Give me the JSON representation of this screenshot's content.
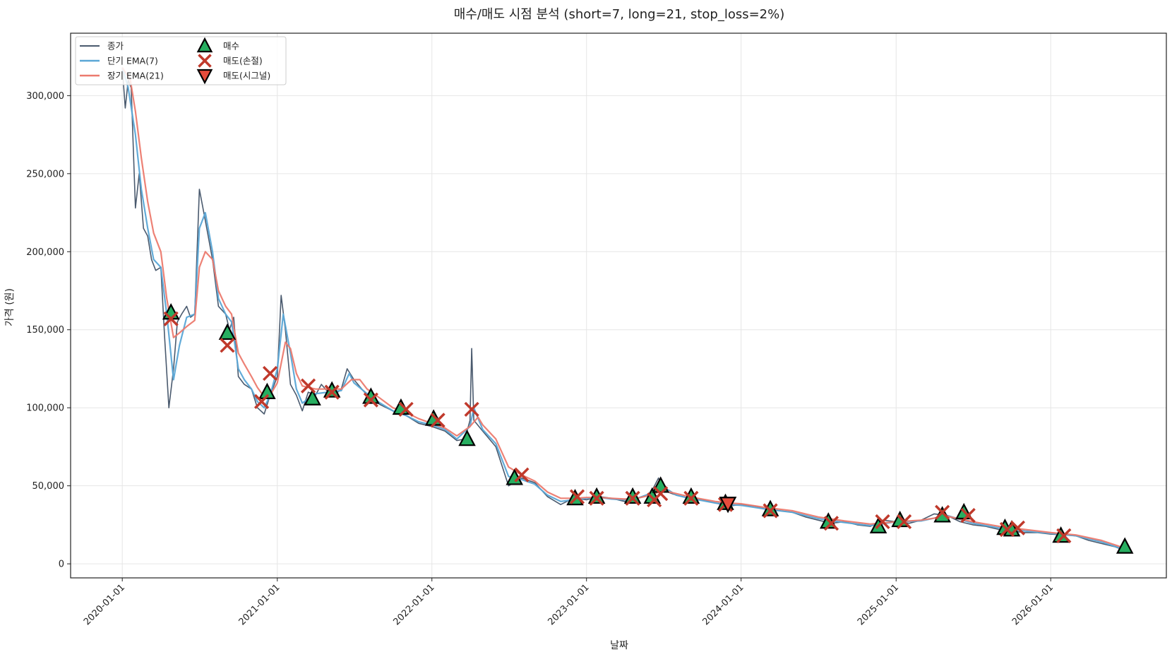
{
  "chart_data": {
    "type": "line",
    "title": "매수/매도 시점 분석 (short=7, long=21, stop_loss=2%)",
    "xlabel": "날짜",
    "ylabel": "가격 (원)",
    "xlim": [
      "2019-09-01",
      "2026-10-01"
    ],
    "ylim": [
      -9000,
      340000
    ],
    "grid": true,
    "legend_position": "top-left",
    "x_ticks": [
      "2020-01-01",
      "2021-01-01",
      "2022-01-01",
      "2023-01-01",
      "2024-01-01",
      "2025-01-01",
      "2026-01-01"
    ],
    "y_ticks": [
      0,
      50000,
      100000,
      150000,
      200000,
      250000,
      300000
    ],
    "y_tick_labels": [
      "0",
      "50,000",
      "100,000",
      "150,000",
      "200,000",
      "250,000",
      "300,000"
    ],
    "colors": {
      "close": "#4a5a6e",
      "ema_short": "#5aa7d6",
      "ema_long": "#ec7a6e",
      "buy": "#27ae60",
      "sell_stop": "#c0392b",
      "sell_signal": "#e74c3c",
      "grid": "#e6e6e6"
    },
    "series": [
      {
        "name": "종가",
        "x": [
          "2020-01-01",
          "2020-01-08",
          "2020-01-15",
          "2020-01-22",
          "2020-02-01",
          "2020-02-10",
          "2020-02-20",
          "2020-03-01",
          "2020-03-10",
          "2020-03-20",
          "2020-04-01",
          "2020-04-10",
          "2020-04-20",
          "2020-05-01",
          "2020-05-10",
          "2020-05-20",
          "2020-06-01",
          "2020-06-10",
          "2020-06-20",
          "2020-07-01",
          "2020-07-15",
          "2020-08-01",
          "2020-08-15",
          "2020-09-01",
          "2020-09-10",
          "2020-09-20",
          "2020-10-01",
          "2020-10-15",
          "2020-11-01",
          "2020-11-15",
          "2020-12-01",
          "2020-12-15",
          "2021-01-01",
          "2021-01-10",
          "2021-01-20",
          "2021-02-01",
          "2021-02-15",
          "2021-03-01",
          "2021-03-15",
          "2021-04-01",
          "2021-04-15",
          "2021-05-01",
          "2021-05-15",
          "2021-06-01",
          "2021-06-15",
          "2021-07-01",
          "2021-08-01",
          "2021-09-01",
          "2021-10-01",
          "2021-11-01",
          "2021-12-01",
          "2022-01-01",
          "2022-02-01",
          "2022-03-01",
          "2022-03-20",
          "2022-04-01",
          "2022-04-05",
          "2022-04-10",
          "2022-05-01",
          "2022-06-01",
          "2022-07-01",
          "2022-08-01",
          "2022-09-01",
          "2022-10-01",
          "2022-11-01",
          "2022-12-01",
          "2023-01-01",
          "2023-02-01",
          "2023-03-01",
          "2023-04-01",
          "2023-05-01",
          "2023-06-01",
          "2023-06-20",
          "2023-07-01",
          "2023-08-01",
          "2023-09-01",
          "2023-10-01",
          "2023-11-01",
          "2023-12-01",
          "2024-01-01",
          "2024-02-01",
          "2024-03-01",
          "2024-04-01",
          "2024-05-01",
          "2024-06-01",
          "2024-07-01",
          "2024-08-01",
          "2024-09-01",
          "2024-10-01",
          "2024-11-01",
          "2024-12-01",
          "2025-01-01",
          "2025-02-01",
          "2025-03-01",
          "2025-04-01",
          "2025-05-01",
          "2025-06-01",
          "2025-07-01",
          "2025-08-01",
          "2025-09-01",
          "2025-10-01",
          "2025-11-01",
          "2025-12-01",
          "2026-01-01",
          "2026-02-01",
          "2026-03-01",
          "2026-04-01",
          "2026-05-01",
          "2026-06-01",
          "2026-06-20"
        ],
        "values": [
          318000,
          292000,
          310000,
          305000,
          228000,
          250000,
          215000,
          210000,
          195000,
          188000,
          190000,
          145000,
          100000,
          125000,
          155000,
          160000,
          165000,
          158000,
          160000,
          240000,
          220000,
          195000,
          165000,
          160000,
          150000,
          158000,
          120000,
          115000,
          112000,
          100000,
          96000,
          108000,
          120000,
          172000,
          150000,
          115000,
          108000,
          98000,
          110000,
          108000,
          115000,
          110000,
          108000,
          112000,
          125000,
          118000,
          108000,
          102000,
          98000,
          95000,
          90000,
          88000,
          85000,
          79000,
          80000,
          92000,
          138000,
          92000,
          85000,
          75000,
          50000,
          55000,
          52000,
          43000,
          38000,
          42000,
          41000,
          43000,
          42000,
          40000,
          42000,
          45000,
          55000,
          47000,
          44000,
          42000,
          41000,
          39000,
          37000,
          38000,
          37000,
          35000,
          34000,
          33000,
          30000,
          28000,
          26000,
          27000,
          25000,
          24000,
          28000,
          27000,
          26000,
          28000,
          32000,
          31000,
          27000,
          25000,
          24000,
          22000,
          21000,
          20000,
          20000,
          19000,
          18500,
          18000,
          15000,
          13000,
          11000,
          9000
        ]
      },
      {
        "name": "단기 EMA(7)",
        "x": [
          "2020-01-01",
          "2020-01-15",
          "2020-02-01",
          "2020-02-15",
          "2020-03-01",
          "2020-03-15",
          "2020-04-01",
          "2020-04-15",
          "2020-05-01",
          "2020-05-15",
          "2020-06-01",
          "2020-06-20",
          "2020-07-01",
          "2020-07-15",
          "2020-08-01",
          "2020-08-15",
          "2020-09-01",
          "2020-09-15",
          "2020-10-01",
          "2020-10-15",
          "2020-11-01",
          "2020-11-15",
          "2020-12-01",
          "2020-12-15",
          "2021-01-01",
          "2021-01-15",
          "2021-02-01",
          "2021-02-15",
          "2021-03-01",
          "2021-04-01",
          "2021-05-01",
          "2021-06-01",
          "2021-06-20",
          "2021-07-01",
          "2021-08-01",
          "2021-09-01",
          "2021-10-01",
          "2021-11-01",
          "2021-12-01",
          "2022-01-01",
          "2022-02-01",
          "2022-03-01",
          "2022-04-01",
          "2022-04-10",
          "2022-05-01",
          "2022-06-01",
          "2022-07-01",
          "2022-08-01",
          "2022-09-01",
          "2022-10-01",
          "2022-11-01",
          "2022-12-01",
          "2023-01-01",
          "2023-02-01",
          "2023-03-01",
          "2023-04-01",
          "2023-05-01",
          "2023-06-01",
          "2023-06-25",
          "2023-07-15",
          "2023-08-01",
          "2023-09-01",
          "2023-10-01",
          "2023-11-01",
          "2023-12-01",
          "2024-01-01",
          "2024-03-01",
          "2024-05-01",
          "2024-07-01",
          "2024-09-01",
          "2024-11-01",
          "2025-01-01",
          "2025-03-01",
          "2025-05-01",
          "2025-07-01",
          "2025-09-01",
          "2025-11-01",
          "2026-01-01",
          "2026-03-01",
          "2026-05-01",
          "2026-06-20"
        ],
        "values": [
          318000,
          305000,
          275000,
          240000,
          215000,
          195000,
          190000,
          160000,
          118000,
          140000,
          158000,
          160000,
          215000,
          225000,
          200000,
          170000,
          160000,
          155000,
          125000,
          118000,
          112000,
          104000,
          100000,
          108000,
          125000,
          160000,
          135000,
          112000,
          103000,
          109000,
          110000,
          111000,
          122000,
          116000,
          109000,
          103000,
          98000,
          95000,
          91000,
          89000,
          86000,
          80000,
          88000,
          100000,
          86000,
          77000,
          56000,
          54000,
          51000,
          44000,
          40000,
          41000,
          42000,
          42500,
          41500,
          41000,
          42000,
          45000,
          50000,
          47000,
          44000,
          42000,
          40500,
          39000,
          38000,
          37500,
          35000,
          33000,
          29000,
          26500,
          24500,
          27000,
          27500,
          31000,
          26000,
          23000,
          21000,
          19500,
          18000,
          14000,
          9500
        ]
      },
      {
        "name": "장기 EMA(21)",
        "x": [
          "2020-01-01",
          "2020-01-20",
          "2020-02-01",
          "2020-02-15",
          "2020-03-01",
          "2020-03-15",
          "2020-04-01",
          "2020-04-15",
          "2020-05-01",
          "2020-05-15",
          "2020-06-01",
          "2020-06-20",
          "2020-07-01",
          "2020-07-15",
          "2020-08-01",
          "2020-08-15",
          "2020-09-01",
          "2020-09-15",
          "2020-10-01",
          "2020-10-15",
          "2020-11-01",
          "2020-11-15",
          "2020-12-01",
          "2020-12-15",
          "2021-01-01",
          "2021-01-20",
          "2021-02-01",
          "2021-02-15",
          "2021-03-01",
          "2021-04-01",
          "2021-05-01",
          "2021-06-01",
          "2021-06-25",
          "2021-07-15",
          "2021-08-01",
          "2021-09-01",
          "2021-10-01",
          "2021-11-01",
          "2021-12-01",
          "2022-01-01",
          "2022-02-01",
          "2022-03-01",
          "2022-04-01",
          "2022-04-20",
          "2022-05-01",
          "2022-06-01",
          "2022-07-01",
          "2022-08-01",
          "2022-09-01",
          "2022-10-01",
          "2022-11-01",
          "2022-12-01",
          "2023-01-01",
          "2023-02-01",
          "2023-03-01",
          "2023-04-01",
          "2023-05-01",
          "2023-06-01",
          "2023-07-01",
          "2023-08-01",
          "2023-09-01",
          "2023-10-01",
          "2023-11-01",
          "2023-12-01",
          "2024-01-01",
          "2024-03-01",
          "2024-05-01",
          "2024-07-01",
          "2024-09-01",
          "2024-11-01",
          "2025-01-01",
          "2025-03-01",
          "2025-05-01",
          "2025-07-01",
          "2025-09-01",
          "2025-11-01",
          "2026-01-01",
          "2026-03-01",
          "2026-05-01",
          "2026-06-20"
        ],
        "values": [
          318000,
          310000,
          290000,
          260000,
          232000,
          212000,
          200000,
          170000,
          145000,
          148000,
          152000,
          156000,
          190000,
          200000,
          195000,
          175000,
          165000,
          160000,
          135000,
          128000,
          120000,
          113000,
          107000,
          108000,
          116000,
          142000,
          138000,
          122000,
          114000,
          112000,
          112000,
          112000,
          118000,
          118000,
          112000,
          106000,
          100000,
          97000,
          93000,
          90000,
          87000,
          82000,
          88000,
          94000,
          89000,
          80000,
          62000,
          57000,
          53000,
          46000,
          42000,
          42000,
          42500,
          42500,
          42000,
          41500,
          42000,
          44000,
          47000,
          45000,
          43000,
          41500,
          40000,
          39000,
          38500,
          36000,
          34000,
          30000,
          27500,
          25500,
          27000,
          28000,
          30500,
          27000,
          24000,
          22000,
          20000,
          18500,
          15000,
          10500
        ]
      }
    ],
    "markers": [
      {
        "name": "매수",
        "shape": "triangle-up",
        "x": [
          "2020-04-25",
          "2020-09-05",
          "2020-12-08",
          "2021-03-25",
          "2021-05-10",
          "2021-08-10",
          "2021-10-20",
          "2022-01-05",
          "2022-03-25",
          "2022-07-15",
          "2022-12-05",
          "2023-01-25",
          "2023-04-20",
          "2023-06-05",
          "2023-06-25",
          "2023-09-05",
          "2023-11-25",
          "2024-03-10",
          "2024-07-25",
          "2024-11-20",
          "2025-01-10",
          "2025-04-20",
          "2025-06-10",
          "2025-09-15",
          "2025-10-01",
          "2026-01-25",
          "2026-06-25"
        ],
        "values": [
          161000,
          148000,
          110000,
          106000,
          111000,
          107000,
          100000,
          93000,
          80000,
          55000,
          42000,
          43000,
          43000,
          43000,
          50000,
          43000,
          39000,
          35000,
          27000,
          24000,
          28000,
          31000,
          33000,
          23000,
          22000,
          18000,
          11000
        ]
      },
      {
        "name": "매도(손절)",
        "shape": "x",
        "x": [
          "2020-04-25",
          "2020-09-05",
          "2020-11-25",
          "2020-12-15",
          "2021-03-15",
          "2021-05-10",
          "2021-08-10",
          "2021-11-01",
          "2022-01-15",
          "2022-04-05",
          "2022-08-01",
          "2022-12-10",
          "2023-01-25",
          "2023-04-20",
          "2023-06-10",
          "2023-06-25",
          "2023-09-05",
          "2023-11-25",
          "2024-03-10",
          "2024-08-01",
          "2024-11-30",
          "2025-01-20",
          "2025-04-20",
          "2025-06-20",
          "2025-09-20",
          "2025-10-15",
          "2026-02-01"
        ],
        "values": [
          157000,
          140000,
          104000,
          122000,
          114000,
          110000,
          105000,
          99000,
          92000,
          99000,
          57000,
          43000,
          42000,
          42000,
          41000,
          45000,
          42000,
          38000,
          34000,
          26000,
          27000,
          27000,
          33000,
          31000,
          22000,
          23000,
          18000
        ]
      },
      {
        "name": "매도(시그널)",
        "shape": "triangle-down",
        "x": [
          "2023-12-01"
        ],
        "values": [
          38500
        ]
      }
    ]
  }
}
